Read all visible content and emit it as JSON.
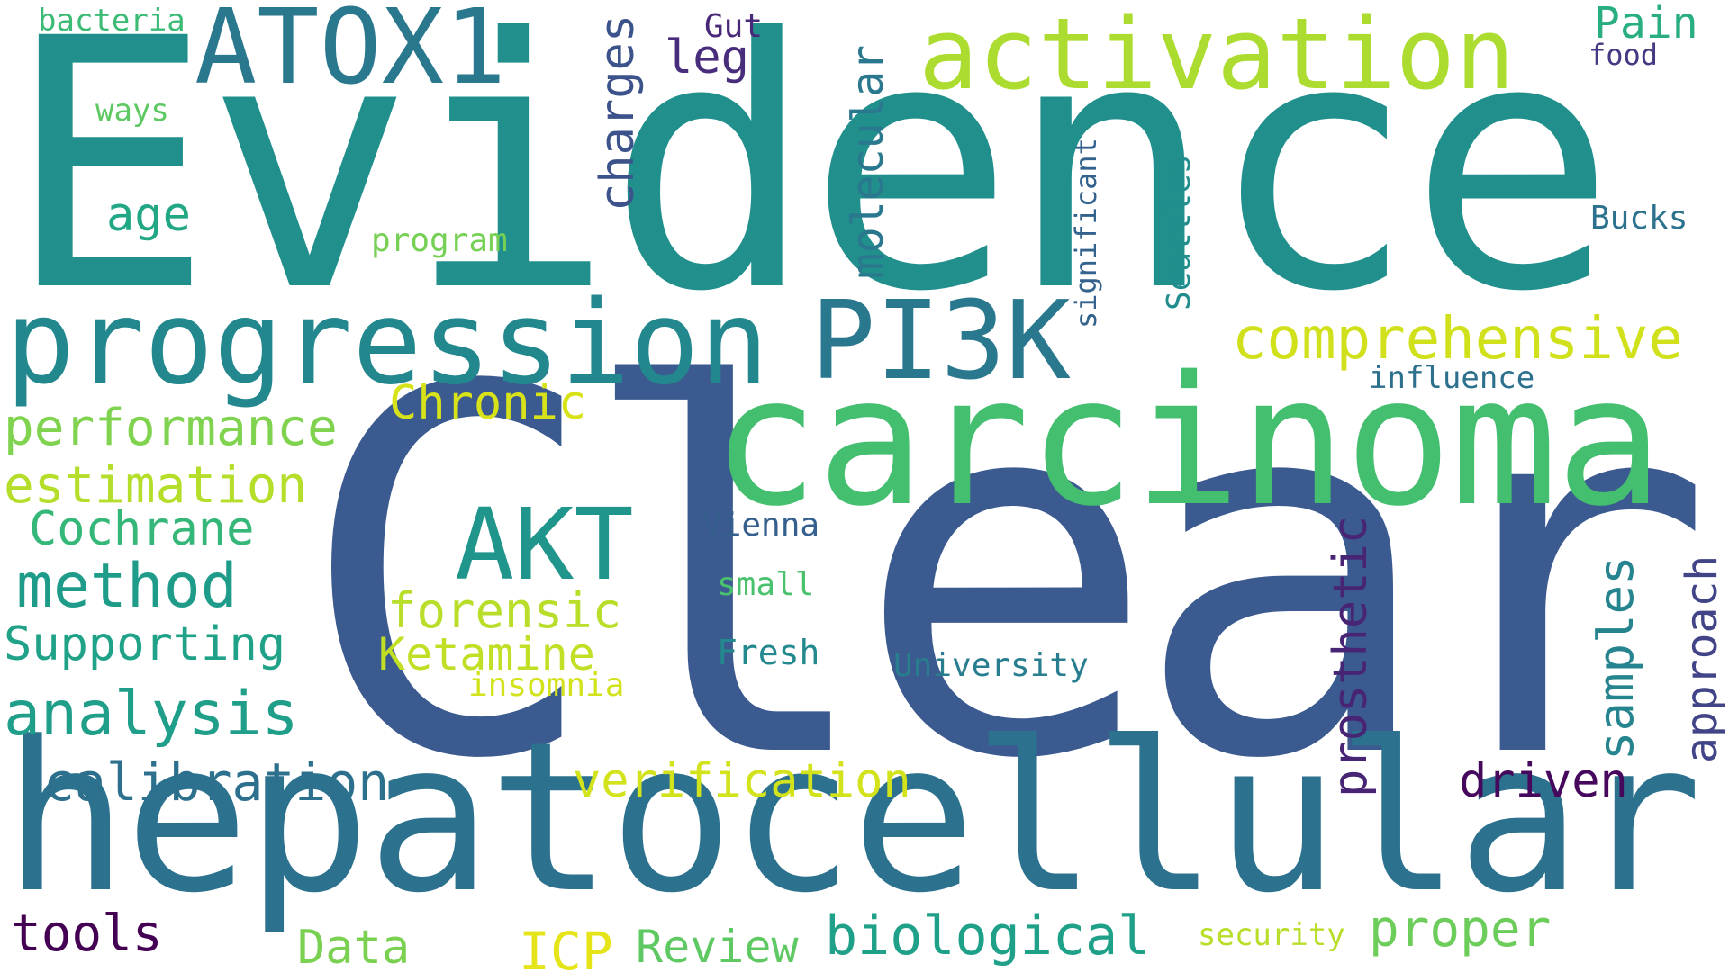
{
  "word_cloud": {
    "palette": "viridis",
    "words": {
      "evidence": {
        "text": "Evidence",
        "color": "#21908d"
      },
      "clear": {
        "text": "Clear",
        "color": "#3b5a8f"
      },
      "hepatocellular": {
        "text": "hepatocellular",
        "color": "#2c728e"
      },
      "carcinoma": {
        "text": "carcinoma",
        "color": "#44bf70"
      },
      "progression": {
        "text": "progression",
        "color": "#23888e"
      },
      "activation": {
        "text": "activation",
        "color": "#addc30"
      },
      "pi3k": {
        "text": "PI3K",
        "color": "#2a788e"
      },
      "atox1": {
        "text": "ATOX1",
        "color": "#2a788e"
      },
      "akt": {
        "text": "AKT",
        "color": "#1f958b"
      },
      "comprehensive": {
        "text": "comprehensive",
        "color": "#d0e11c"
      },
      "performance": {
        "text": "performance",
        "color": "#7fd34e"
      },
      "estimation": {
        "text": "estimation",
        "color": "#b5de2b"
      },
      "chronic": {
        "text": "Chronic",
        "color": "#d8e219"
      },
      "cochrane": {
        "text": "Cochrane",
        "color": "#35b779"
      },
      "method": {
        "text": "method",
        "color": "#1e9c89"
      },
      "supporting": {
        "text": "Supporting",
        "color": "#1fa287"
      },
      "analysis": {
        "text": "analysis",
        "color": "#1f9e89"
      },
      "forensic": {
        "text": "forensic",
        "color": "#b8de29"
      },
      "ketamine": {
        "text": "Ketamine",
        "color": "#c0df25"
      },
      "insomnia": {
        "text": "insomnia",
        "color": "#d2e21b"
      },
      "calibration": {
        "text": "calibration",
        "color": "#2d708e"
      },
      "verification": {
        "text": "verification",
        "color": "#d2e21b"
      },
      "tools": {
        "text": "tools",
        "color": "#440154"
      },
      "data": {
        "text": "Data",
        "color": "#7ad151"
      },
      "icp": {
        "text": "ICP",
        "color": "#e5e419"
      },
      "review": {
        "text": "Review",
        "color": "#5ec962"
      },
      "biological": {
        "text": "biological",
        "color": "#1fa088"
      },
      "security": {
        "text": "security",
        "color": "#b8de29"
      },
      "proper": {
        "text": "proper",
        "color": "#6ccd5a"
      },
      "driven": {
        "text": "driven",
        "color": "#46085c"
      },
      "university": {
        "text": "University",
        "color": "#287d8e"
      },
      "fresh": {
        "text": "Fresh",
        "color": "#23898e"
      },
      "small": {
        "text": "small",
        "color": "#4ac16d"
      },
      "vienna": {
        "text": "Vienna",
        "color": "#355f8d"
      },
      "influence": {
        "text": "influence",
        "color": "#2d708e"
      },
      "age": {
        "text": "age",
        "color": "#22a785"
      },
      "program": {
        "text": "program",
        "color": "#75d054"
      },
      "ways": {
        "text": "ways",
        "color": "#5ec962"
      },
      "bacteria": {
        "text": "bacteria",
        "color": "#3bbb75"
      },
      "leg": {
        "text": "leg",
        "color": "#472d7b"
      },
      "gut": {
        "text": "Gut",
        "color": "#482878"
      },
      "pain": {
        "text": "Pain",
        "color": "#29af7f"
      },
      "food": {
        "text": "food",
        "color": "#443a83"
      },
      "bucks": {
        "text": "Bucks",
        "color": "#2c728e"
      },
      "charges": {
        "text": "charges",
        "color": "#3b528b"
      },
      "molecular": {
        "text": "molecular",
        "color": "#2a788e"
      },
      "significant": {
        "text": "significant",
        "color": "#33638d"
      },
      "seattles": {
        "text": "Seattles",
        "color": "#228d8d"
      },
      "prosthetic": {
        "text": "prosthetic",
        "color": "#482475"
      },
      "samples": {
        "text": "samples",
        "color": "#25848e"
      },
      "approach": {
        "text": "approach",
        "color": "#414487"
      }
    }
  }
}
